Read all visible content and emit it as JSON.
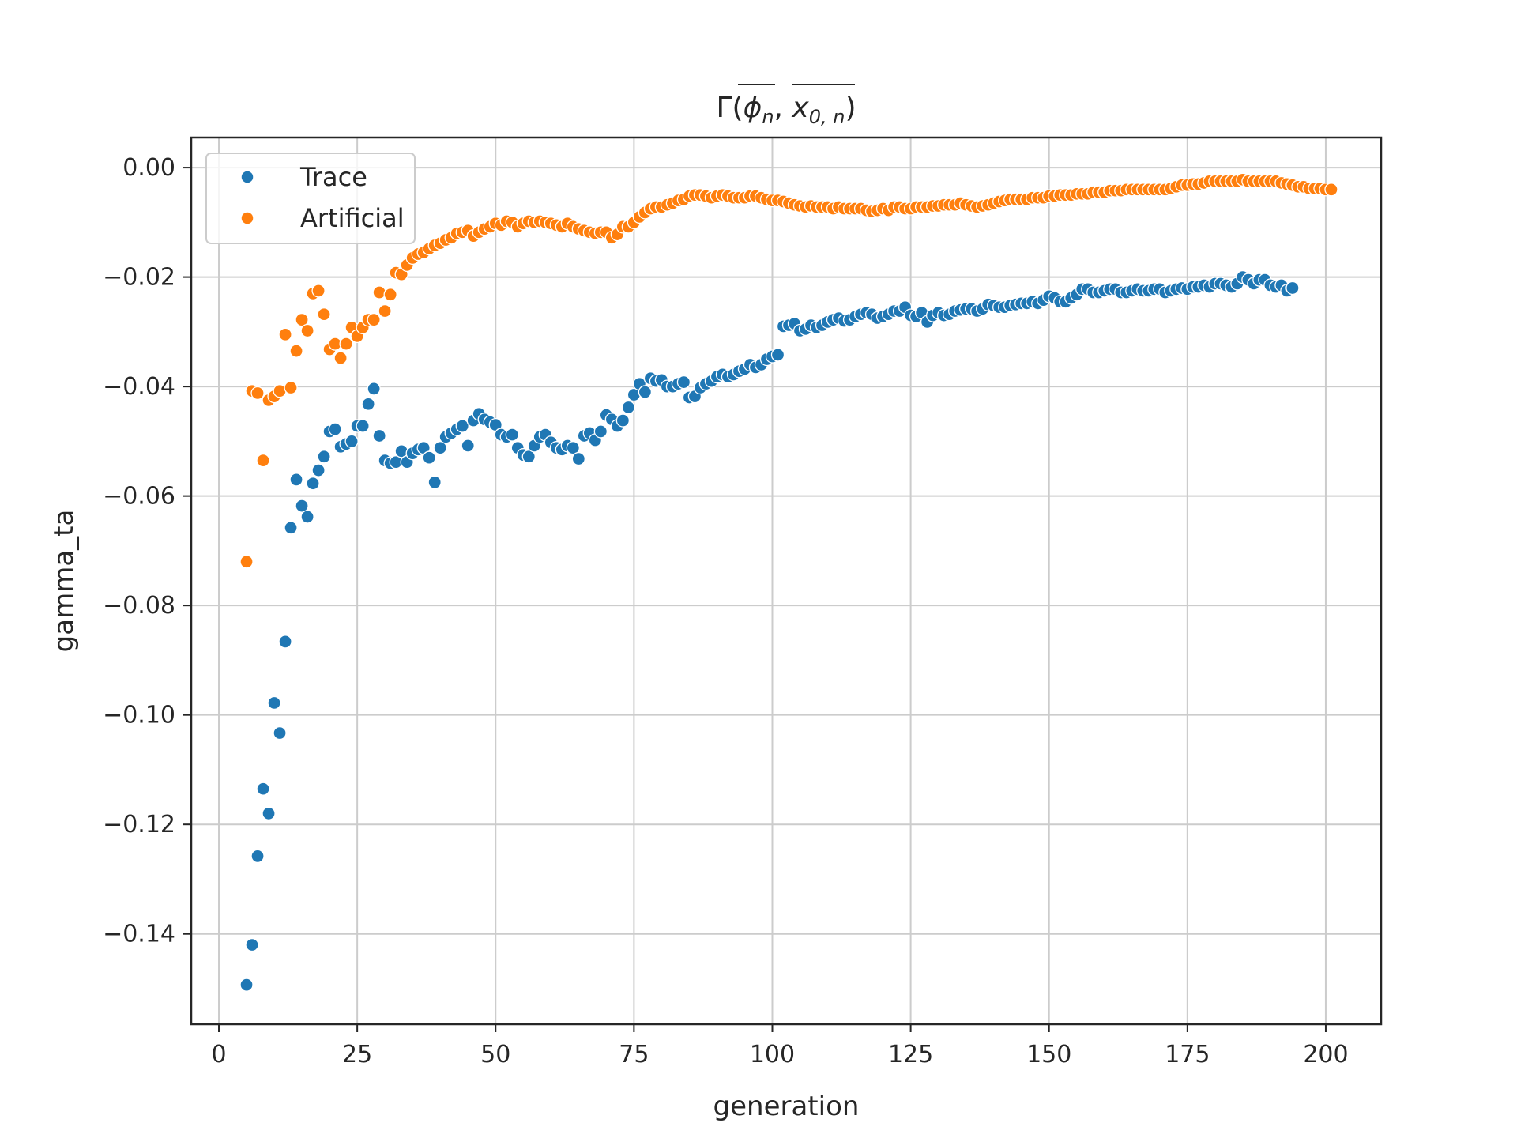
{
  "chart_data": {
    "type": "scatter",
    "title": "Γ(ϕ̄ₙ, x̄₀,ₙ)",
    "title_parts": {
      "prefix": "Γ(",
      "phi": "ϕ",
      "phi_sub": "n",
      "sep": ", ",
      "x": "x",
      "x_sub": "0, n",
      "suffix": ")"
    },
    "xlabel": "generation",
    "ylabel": "gamma_ta",
    "xlim": [
      -5,
      210
    ],
    "ylim": [
      -0.1565,
      0.0055
    ],
    "xticks": [
      0,
      25,
      50,
      75,
      100,
      125,
      150,
      175,
      200
    ],
    "xtick_labels": [
      "0",
      "25",
      "50",
      "75",
      "100",
      "125",
      "150",
      "175",
      "200"
    ],
    "yticks": [
      0,
      -0.02,
      -0.04,
      -0.06,
      -0.08,
      -0.1,
      -0.12,
      -0.14
    ],
    "ytick_labels": [
      "0.00",
      "−0.02",
      "−0.04",
      "−0.06",
      "−0.08",
      "−0.10",
      "−0.12",
      "−0.14"
    ],
    "grid": true,
    "legend_position": "top-left",
    "series": [
      {
        "name": "Trace",
        "color": "#1f77b4",
        "x_start": 5,
        "y": [
          -0.1493,
          -0.142,
          -0.1258,
          -0.1135,
          -0.118,
          -0.0978,
          -0.1033,
          -0.0866,
          -0.0658,
          -0.057,
          -0.0618,
          -0.0638,
          -0.0577,
          -0.0553,
          -0.0528,
          -0.0482,
          -0.0478,
          -0.051,
          -0.0505,
          -0.05,
          -0.0472,
          -0.0472,
          -0.0432,
          -0.0404,
          -0.049,
          -0.0535,
          -0.054,
          -0.0538,
          -0.0518,
          -0.0538,
          -0.0522,
          -0.0515,
          -0.0512,
          -0.053,
          -0.0575,
          -0.0512,
          -0.0492,
          -0.0485,
          -0.0478,
          -0.0472,
          -0.0508,
          -0.0462,
          -0.045,
          -0.046,
          -0.0465,
          -0.047,
          -0.0488,
          -0.0492,
          -0.0488,
          -0.0512,
          -0.0525,
          -0.0528,
          -0.0508,
          -0.0492,
          -0.0488,
          -0.0502,
          -0.0512,
          -0.0515,
          -0.0508,
          -0.0512,
          -0.0532,
          -0.049,
          -0.0485,
          -0.0498,
          -0.0482,
          -0.0452,
          -0.046,
          -0.0472,
          -0.0462,
          -0.0438,
          -0.0415,
          -0.0395,
          -0.041,
          -0.0385,
          -0.039,
          -0.0388,
          -0.04,
          -0.04,
          -0.0395,
          -0.0392,
          -0.042,
          -0.0418,
          -0.0402,
          -0.0395,
          -0.039,
          -0.0382,
          -0.0378,
          -0.0382,
          -0.0378,
          -0.0372,
          -0.0368,
          -0.036,
          -0.0365,
          -0.036,
          -0.035,
          -0.0345,
          -0.0342,
          -0.029,
          -0.0288,
          -0.0285,
          -0.0298,
          -0.0295,
          -0.0288,
          -0.0292,
          -0.0288,
          -0.0282,
          -0.0278,
          -0.0275,
          -0.028,
          -0.0278,
          -0.0272,
          -0.0268,
          -0.0265,
          -0.0268,
          -0.0275,
          -0.0272,
          -0.0268,
          -0.0262,
          -0.0262,
          -0.0255,
          -0.027,
          -0.0272,
          -0.0265,
          -0.0282,
          -0.027,
          -0.0265,
          -0.027,
          -0.0268,
          -0.0262,
          -0.026,
          -0.0258,
          -0.0258,
          -0.0262,
          -0.0258,
          -0.025,
          -0.0252,
          -0.0255,
          -0.0255,
          -0.0252,
          -0.025,
          -0.0248,
          -0.0248,
          -0.0245,
          -0.0248,
          -0.0242,
          -0.0235,
          -0.0238,
          -0.0245,
          -0.0245,
          -0.0238,
          -0.0232,
          -0.0222,
          -0.0222,
          -0.0228,
          -0.0228,
          -0.0225,
          -0.0222,
          -0.0222,
          -0.0228,
          -0.0228,
          -0.0225,
          -0.0222,
          -0.0225,
          -0.0225,
          -0.0222,
          -0.0222,
          -0.0228,
          -0.0225,
          -0.0222,
          -0.022,
          -0.0222,
          -0.0218,
          -0.0218,
          -0.0215,
          -0.0218,
          -0.0212,
          -0.0212,
          -0.0215,
          -0.0218,
          -0.0212,
          -0.02,
          -0.0205,
          -0.0212,
          -0.0205,
          -0.0205,
          -0.0215,
          -0.0218,
          -0.0215,
          -0.0225,
          -0.022
        ]
      },
      {
        "name": "Artificial",
        "color": "#ff7f0e",
        "x_start": 5,
        "y": [
          -0.072,
          -0.0408,
          -0.0412,
          -0.0535,
          -0.0425,
          -0.0418,
          -0.0408,
          -0.0305,
          -0.0402,
          -0.0335,
          -0.0278,
          -0.0298,
          -0.023,
          -0.0225,
          -0.0268,
          -0.0332,
          -0.0322,
          -0.0348,
          -0.0322,
          -0.0292,
          -0.0308,
          -0.0292,
          -0.0278,
          -0.0278,
          -0.0228,
          -0.0262,
          -0.0232,
          -0.0192,
          -0.0195,
          -0.0178,
          -0.0165,
          -0.0158,
          -0.0155,
          -0.0148,
          -0.0142,
          -0.0138,
          -0.0132,
          -0.0128,
          -0.012,
          -0.0118,
          -0.0115,
          -0.0125,
          -0.0118,
          -0.0112,
          -0.0108,
          -0.0102,
          -0.0105,
          -0.0098,
          -0.01,
          -0.0108,
          -0.0102,
          -0.0098,
          -0.01,
          -0.0098,
          -0.01,
          -0.0102,
          -0.0105,
          -0.0108,
          -0.0102,
          -0.0108,
          -0.0112,
          -0.0115,
          -0.0118,
          -0.012,
          -0.0118,
          -0.0118,
          -0.0128,
          -0.0122,
          -0.0108,
          -0.0108,
          -0.01,
          -0.009,
          -0.0082,
          -0.0075,
          -0.0072,
          -0.0072,
          -0.0068,
          -0.0065,
          -0.006,
          -0.0058,
          -0.0052,
          -0.005,
          -0.005,
          -0.0052,
          -0.0055,
          -0.0052,
          -0.005,
          -0.0052,
          -0.0055,
          -0.0055,
          -0.0055,
          -0.0052,
          -0.0052,
          -0.0055,
          -0.0058,
          -0.006,
          -0.006,
          -0.0062,
          -0.0065,
          -0.0068,
          -0.007,
          -0.0072,
          -0.007,
          -0.0072,
          -0.0072,
          -0.0072,
          -0.0075,
          -0.0072,
          -0.0075,
          -0.0075,
          -0.0075,
          -0.0075,
          -0.0078,
          -0.008,
          -0.0078,
          -0.0075,
          -0.0078,
          -0.0072,
          -0.0072,
          -0.0075,
          -0.0075,
          -0.0072,
          -0.0072,
          -0.0072,
          -0.007,
          -0.007,
          -0.0068,
          -0.0068,
          -0.0068,
          -0.0065,
          -0.0068,
          -0.007,
          -0.0072,
          -0.007,
          -0.0068,
          -0.0065,
          -0.0062,
          -0.006,
          -0.0058,
          -0.0058,
          -0.0058,
          -0.0058,
          -0.0055,
          -0.0055,
          -0.0055,
          -0.0052,
          -0.0052,
          -0.005,
          -0.005,
          -0.005,
          -0.0048,
          -0.0048,
          -0.0048,
          -0.0045,
          -0.0045,
          -0.0045,
          -0.0042,
          -0.0042,
          -0.0042,
          -0.004,
          -0.004,
          -0.004,
          -0.004,
          -0.004,
          -0.004,
          -0.004,
          -0.004,
          -0.0038,
          -0.0035,
          -0.0032,
          -0.0032,
          -0.003,
          -0.003,
          -0.0028,
          -0.0025,
          -0.0025,
          -0.0025,
          -0.0025,
          -0.0025,
          -0.0025,
          -0.0022,
          -0.0025,
          -0.0025,
          -0.0025,
          -0.0025,
          -0.0025,
          -0.0025,
          -0.0028,
          -0.003,
          -0.0032,
          -0.0035,
          -0.0035,
          -0.0038,
          -0.0038,
          -0.0038,
          -0.004,
          -0.004
        ]
      }
    ]
  }
}
